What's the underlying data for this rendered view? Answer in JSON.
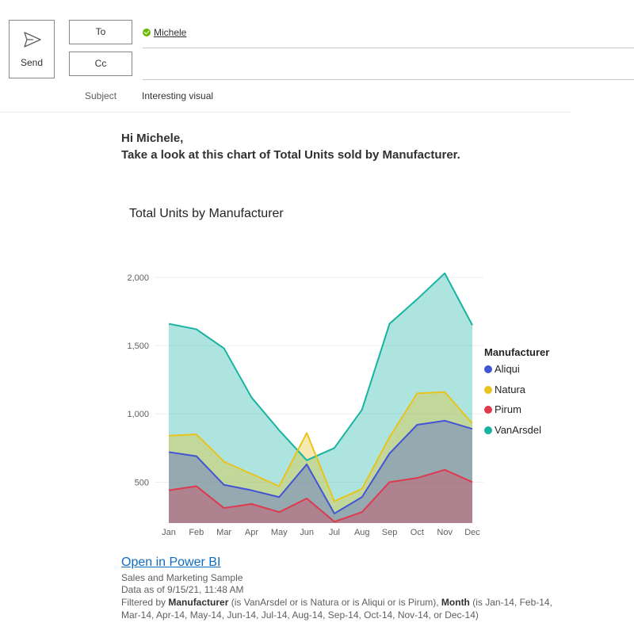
{
  "compose": {
    "send_label": "Send",
    "to_label": "To",
    "cc_label": "Cc",
    "recipient": "Michele",
    "subject_label": "Subject",
    "subject": "Interesting visual"
  },
  "body": {
    "greeting": "Hi Michele,",
    "message": "Take a look at this chart of Total Units sold by Manufacturer."
  },
  "chart_data": {
    "type": "area",
    "title": "Total Units by Manufacturer",
    "xlabel": "",
    "ylabel": "",
    "categories": [
      "Jan",
      "Feb",
      "Mar",
      "Apr",
      "May",
      "Jun",
      "Jul",
      "Aug",
      "Sep",
      "Oct",
      "Nov",
      "Dec"
    ],
    "yticks": [
      500,
      1000,
      1500,
      2000
    ],
    "ytick_labels": [
      "500",
      "1,000",
      "1,500",
      "2,000"
    ],
    "ylim": [
      200,
      2100
    ],
    "grid": true,
    "legend_title": "Manufacturer",
    "legend_position": "right",
    "series": [
      {
        "name": "Aliqui",
        "color": "#4353d6",
        "values": [
          720,
          690,
          480,
          440,
          390,
          630,
          270,
          390,
          710,
          920,
          950,
          890
        ]
      },
      {
        "name": "Natura",
        "color": "#e8c31e",
        "values": [
          840,
          850,
          650,
          560,
          470,
          860,
          360,
          450,
          830,
          1150,
          1160,
          930
        ]
      },
      {
        "name": "Pirum",
        "color": "#dd3a4f",
        "values": [
          440,
          470,
          310,
          340,
          280,
          380,
          210,
          280,
          500,
          530,
          590,
          500
        ]
      },
      {
        "name": "VanArsdel",
        "color": "#17b3a2",
        "values": [
          1660,
          1620,
          1480,
          1120,
          880,
          660,
          750,
          1030,
          1660,
          1840,
          2030,
          1650
        ]
      }
    ]
  },
  "footer": {
    "open_link": "Open in Power BI",
    "dataset": "Sales and Marketing Sample",
    "data_as_of": "Data as of 9/15/21, 11:48 AM",
    "filter_prefix": "Filtered by ",
    "filter_field1": "Manufacturer",
    "filter_text1": " (is VanArsdel or is Natura or is Aliqui or is Pirum), ",
    "filter_field2": "Month",
    "filter_text2": " (is Jan-14, Feb-14, Mar-14, Apr-14, May-14, Jun-14, Jul-14, Aug-14, Sep-14, Oct-14, Nov-14, or Dec-14)"
  }
}
